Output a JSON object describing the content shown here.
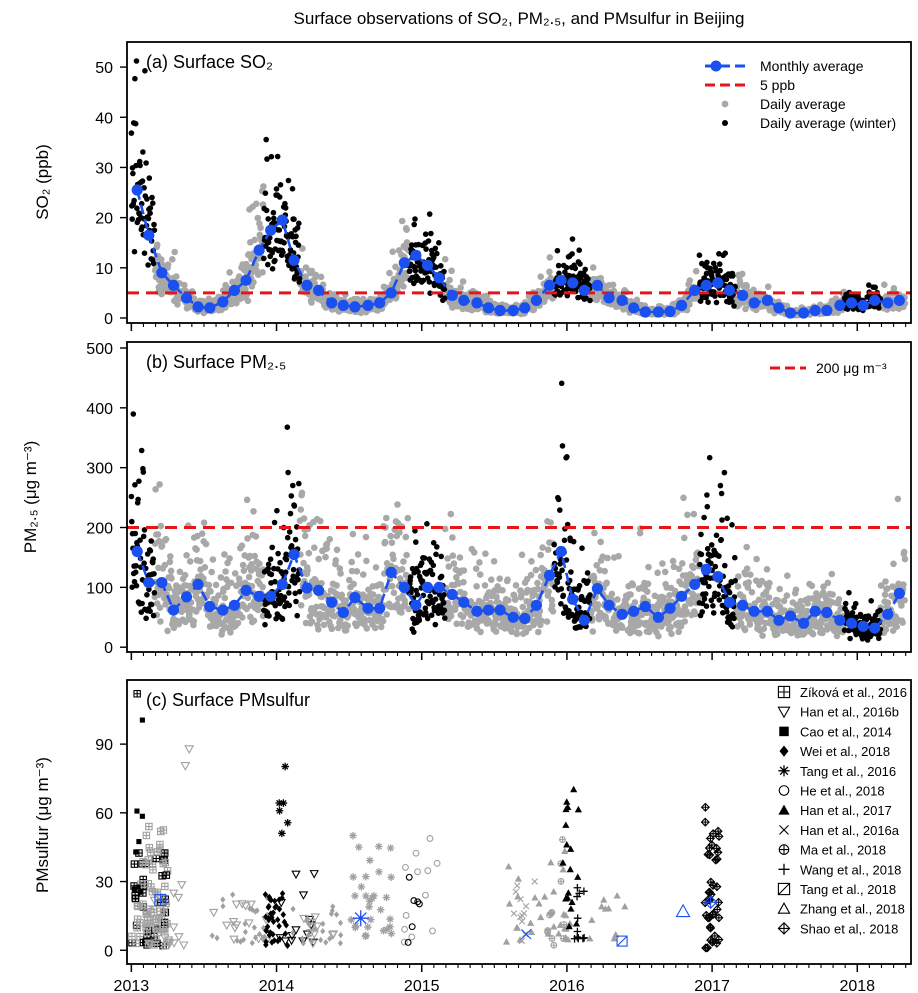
{
  "figure": {
    "title": "Surface observations of SO₂, PM₂.₅, and PMsulfur in Beijing"
  },
  "colors": {
    "monthly": "#1a4ff0",
    "threshold": "#e8141c",
    "daily": "#a8a8a8",
    "winter": "#000000",
    "study_gray": "#a0a0a0",
    "study_blue": "#1a4ff0"
  },
  "x_axis": {
    "ticks": [
      2013,
      2014,
      2015,
      2016,
      2017,
      2018
    ],
    "ticklabels": [
      "2013",
      "2014",
      "2015",
      "2016",
      "2017",
      "2018"
    ],
    "range": [
      2012.97,
      2018.37
    ]
  },
  "chart_data": [
    {
      "type": "line",
      "panel_label": "(a) Surface SO₂",
      "ylabel": "SO₂ (ppb)",
      "ylim": [
        -1,
        55
      ],
      "yticks": [
        0,
        10,
        20,
        30,
        40,
        50
      ],
      "threshold": {
        "value": 5,
        "label": "5 ppb"
      },
      "legend": {
        "position": "top-right",
        "entries": [
          "Monthly average",
          "5 ppb",
          "Daily average",
          "Daily average (winter)"
        ]
      },
      "series": [
        {
          "name": "Monthly average",
          "x": [
            2013.04,
            2013.12,
            2013.21,
            2013.29,
            2013.38,
            2013.46,
            2013.54,
            2013.63,
            2013.71,
            2013.79,
            2013.88,
            2013.96,
            2014.04,
            2014.12,
            2014.21,
            2014.29,
            2014.38,
            2014.46,
            2014.54,
            2014.63,
            2014.71,
            2014.79,
            2014.88,
            2014.96,
            2015.04,
            2015.12,
            2015.21,
            2015.29,
            2015.38,
            2015.46,
            2015.54,
            2015.63,
            2015.71,
            2015.79,
            2015.88,
            2015.96,
            2016.04,
            2016.12,
            2016.21,
            2016.29,
            2016.38,
            2016.46,
            2016.54,
            2016.63,
            2016.71,
            2016.79,
            2016.88,
            2016.96,
            2017.04,
            2017.12,
            2017.21,
            2017.29,
            2017.38,
            2017.46,
            2017.54,
            2017.63,
            2017.71,
            2017.79,
            2017.88,
            2017.96,
            2018.04,
            2018.12,
            2018.21,
            2018.29
          ],
          "y": [
            25.5,
            16.5,
            9.0,
            6.5,
            4.0,
            2.2,
            2.0,
            3.2,
            5.5,
            7.5,
            13.5,
            17.5,
            19.5,
            11.5,
            6.5,
            5.5,
            3.0,
            2.5,
            2.2,
            2.5,
            3.0,
            5.0,
            11.0,
            12.5,
            10.5,
            8.0,
            4.5,
            3.5,
            3.0,
            2.0,
            1.5,
            1.5,
            2.0,
            3.5,
            6.5,
            7.5,
            7.0,
            5.5,
            6.5,
            4.0,
            3.5,
            2.0,
            1.2,
            1.2,
            1.3,
            2.5,
            5.5,
            6.5,
            7.0,
            5.5,
            4.5,
            3.0,
            3.5,
            2.0,
            1.0,
            1.0,
            1.5,
            1.5,
            2.5,
            3.0,
            2.5,
            3.5,
            3.0,
            3.5
          ]
        }
      ]
    },
    {
      "type": "line",
      "panel_label": "(b) Surface PM₂.₅",
      "ylabel": "PM₂.₅ (μg m⁻³)",
      "ylim": [
        -8,
        510
      ],
      "yticks": [
        0,
        100,
        200,
        300,
        400,
        500
      ],
      "threshold": {
        "value": 200,
        "label": "200 μg m⁻³"
      },
      "legend": {
        "position": "top-right",
        "entries": [
          "200 μg m⁻³"
        ]
      },
      "series": [
        {
          "name": "Monthly average",
          "x": [
            2013.04,
            2013.12,
            2013.21,
            2013.29,
            2013.38,
            2013.46,
            2013.54,
            2013.63,
            2013.71,
            2013.79,
            2013.88,
            2013.96,
            2014.04,
            2014.12,
            2014.21,
            2014.29,
            2014.38,
            2014.46,
            2014.54,
            2014.63,
            2014.71,
            2014.79,
            2014.88,
            2014.96,
            2015.04,
            2015.12,
            2015.21,
            2015.29,
            2015.38,
            2015.46,
            2015.54,
            2015.63,
            2015.71,
            2015.79,
            2015.88,
            2015.96,
            2016.04,
            2016.12,
            2016.21,
            2016.29,
            2016.38,
            2016.46,
            2016.54,
            2016.63,
            2016.71,
            2016.79,
            2016.88,
            2016.96,
            2017.04,
            2017.12,
            2017.21,
            2017.29,
            2017.38,
            2017.46,
            2017.54,
            2017.63,
            2017.71,
            2017.79,
            2017.88,
            2017.96,
            2018.04,
            2018.12,
            2018.21,
            2018.29
          ],
          "y": [
            160,
            108,
            108,
            62,
            84,
            105,
            68,
            62,
            70,
            95,
            85,
            85,
            105,
            155,
            99,
            95,
            75,
            58,
            83,
            65,
            65,
            125,
            100,
            70,
            100,
            100,
            88,
            75,
            60,
            62,
            62,
            50,
            48,
            70,
            120,
            160,
            80,
            45,
            98,
            70,
            55,
            60,
            68,
            50,
            65,
            85,
            105,
            130,
            118,
            75,
            70,
            60,
            60,
            45,
            52,
            40,
            60,
            58,
            45,
            40,
            35,
            32,
            55,
            90
          ]
        }
      ]
    },
    {
      "type": "scatter",
      "panel_label": "(c) Surface PMsulfur",
      "ylabel": "PMsulfur (μg m⁻³)",
      "ylim": [
        -6,
        118
      ],
      "yticks": [
        0,
        30,
        60,
        90
      ],
      "legend": {
        "position": "top-right",
        "entries": [
          "Zíková et al., 2016",
          "Han et al., 2016b",
          "Cao et al., 2014",
          "Wei et al., 2018",
          "Tang et al., 2016",
          "He et al., 2018",
          "Han et al., 2017",
          "Han et al., 2016a",
          "Ma et al., 2018",
          "Wang et al., 2018",
          "Tang et al., 2018",
          "Zhang et al., 2018",
          "Shao et al,. 2018"
        ]
      }
    }
  ]
}
